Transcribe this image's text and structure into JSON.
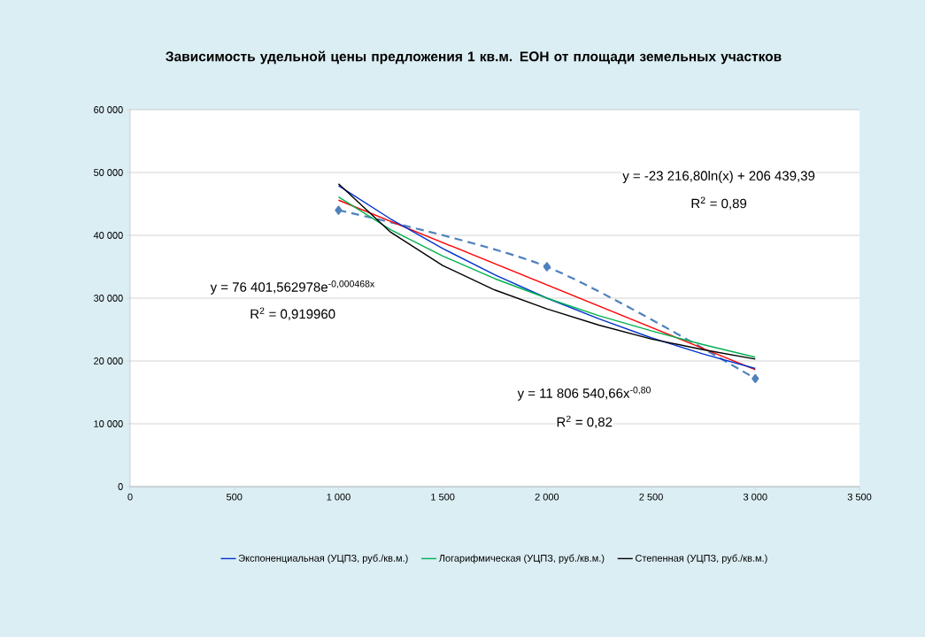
{
  "chart_data": {
    "type": "line",
    "title": "Зависимость  удельной цены предложения  1 кв.м. ЕОН от площади  земельных участков",
    "xlim": [
      0,
      3500
    ],
    "xticks": [
      0,
      500,
      {
        "value": 1000,
        "label": "1 000"
      },
      {
        "value": 1500,
        "label": "1 500"
      },
      {
        "value": 2000,
        "label": "2 000"
      },
      {
        "value": 2500,
        "label": "2 500"
      },
      {
        "value": 3000,
        "label": "3 000"
      },
      {
        "value": 3500,
        "label": "3 500"
      }
    ],
    "ylim": [
      0,
      60000
    ],
    "yticks": [
      0,
      {
        "value": 10000,
        "label": "10 000"
      },
      {
        "value": 20000,
        "label": "20 000"
      },
      {
        "value": 30000,
        "label": "30 000"
      },
      {
        "value": 40000,
        "label": "40 000"
      },
      {
        "value": 50000,
        "label": "50 000"
      },
      {
        "value": 60000,
        "label": "60 000"
      }
    ],
    "grid": "y",
    "legend": "bottom",
    "series": [
      {
        "color": "#4f81bd",
        "x": [
          1000,
          2000,
          3000
        ],
        "values": [
          44000,
          35000,
          17200
        ],
        "marker": "diamond",
        "line_style": "dashed"
      },
      {
        "color": "#ff0000",
        "x": [
          1000,
          3000
        ],
        "values": [
          45600,
          18600
        ]
      },
      {
        "name": "Экспоненциальная (УЦПЗ, руб./кв.м.)",
        "color": "#0033cc",
        "x": [
          1000,
          1250,
          1500,
          1750,
          2000,
          2250,
          2500,
          2750,
          3000
        ],
        "values": [
          47900,
          42600,
          37900,
          33700,
          30000,
          26700,
          23700,
          21100,
          18800
        ]
      },
      {
        "name": "Логарифмическая (УЦПЗ, руб./кв.м.)",
        "color": "#00b050",
        "x": [
          1000,
          1250,
          1500,
          1750,
          2000,
          2250,
          2500,
          2750,
          3000
        ],
        "values": [
          46100,
          40900,
          36700,
          33100,
          30000,
          27200,
          24800,
          22600,
          20600
        ]
      },
      {
        "name": "Степенная (УЦПЗ, руб./кв.м.)",
        "color": "#000000",
        "x": [
          1000,
          1250,
          1500,
          1750,
          2000,
          2250,
          2500,
          2750,
          3000
        ],
        "values": [
          48200,
          40500,
          35200,
          31300,
          28300,
          25700,
          23500,
          21800,
          20300
        ]
      }
    ],
    "annotations": [
      "y = -23 216,80ln(x) + 206 439,39",
      "R$^{2}$ = 0,89",
      "y = 76 401,562978e$^{-0,000468x}$",
      "R$^{2}$ = 0,919960",
      "y = 11 806 540,66x$^{-0,80}$",
      "R$^{2}$ = 0,82"
    ]
  }
}
